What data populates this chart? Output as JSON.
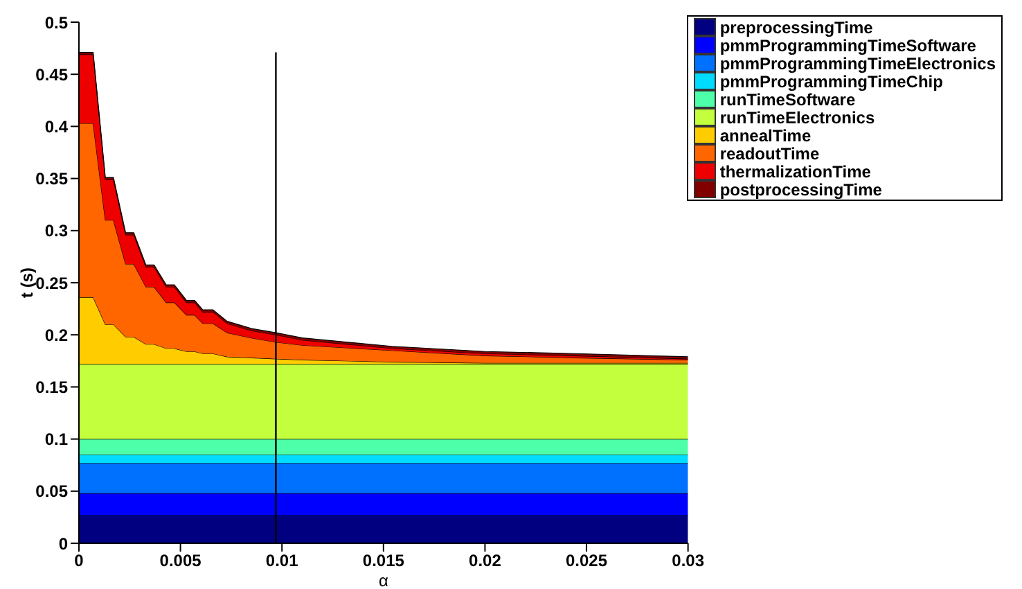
{
  "chart_data": {
    "type": "area",
    "stacked": true,
    "xlabel": "α",
    "ylabel": "t (s)",
    "x": [
      0,
      0.0007,
      0.0013,
      0.0017,
      0.0023,
      0.0027,
      0.0033,
      0.0037,
      0.0043,
      0.0047,
      0.0053,
      0.0057,
      0.0061,
      0.0066,
      0.0073,
      0.0085,
      0.0097,
      0.011,
      0.0154,
      0.02,
      0.0244,
      0.03
    ],
    "series": [
      {
        "name": "preprocessingTime",
        "color": "#000080",
        "values": [
          0.027,
          0.027,
          0.027,
          0.027,
          0.027,
          0.027,
          0.027,
          0.027,
          0.027,
          0.027,
          0.027,
          0.027,
          0.027,
          0.027,
          0.027,
          0.027,
          0.027,
          0.027,
          0.027,
          0.027,
          0.027,
          0.027
        ]
      },
      {
        "name": "pmmProgrammingTimeSoftware",
        "color": "#0000ff",
        "values": [
          0.021,
          0.021,
          0.021,
          0.021,
          0.021,
          0.021,
          0.021,
          0.021,
          0.021,
          0.021,
          0.021,
          0.021,
          0.021,
          0.021,
          0.021,
          0.021,
          0.021,
          0.021,
          0.021,
          0.021,
          0.021,
          0.021
        ]
      },
      {
        "name": "pmmProgrammingTimeElectronics",
        "color": "#0070ff",
        "values": [
          0.029,
          0.029,
          0.029,
          0.029,
          0.029,
          0.029,
          0.029,
          0.029,
          0.029,
          0.029,
          0.029,
          0.029,
          0.029,
          0.029,
          0.029,
          0.029,
          0.029,
          0.029,
          0.029,
          0.029,
          0.029,
          0.029
        ]
      },
      {
        "name": "pmmProgrammingTimeChip",
        "color": "#00dcff",
        "values": [
          0.008,
          0.008,
          0.008,
          0.008,
          0.008,
          0.008,
          0.008,
          0.008,
          0.008,
          0.008,
          0.008,
          0.008,
          0.008,
          0.008,
          0.008,
          0.008,
          0.008,
          0.008,
          0.008,
          0.008,
          0.008,
          0.008
        ]
      },
      {
        "name": "runTimeSoftware",
        "color": "#4dffa8",
        "values": [
          0.015,
          0.015,
          0.015,
          0.015,
          0.015,
          0.015,
          0.015,
          0.015,
          0.015,
          0.015,
          0.015,
          0.015,
          0.015,
          0.015,
          0.015,
          0.015,
          0.015,
          0.015,
          0.015,
          0.015,
          0.015,
          0.015
        ]
      },
      {
        "name": "runTimeElectronics",
        "color": "#c3ff3c",
        "values": [
          0.072,
          0.072,
          0.072,
          0.072,
          0.072,
          0.072,
          0.072,
          0.072,
          0.072,
          0.072,
          0.072,
          0.072,
          0.072,
          0.072,
          0.072,
          0.072,
          0.072,
          0.072,
          0.072,
          0.072,
          0.072,
          0.072
        ]
      },
      {
        "name": "annealTime",
        "color": "#ffcc00",
        "values": [
          0.064,
          0.064,
          0.038,
          0.038,
          0.026,
          0.026,
          0.019,
          0.019,
          0.015,
          0.015,
          0.012,
          0.012,
          0.01,
          0.01,
          0.007,
          0.006,
          0.005,
          0.004,
          0.002,
          0.001,
          0.001,
          0.001
        ]
      },
      {
        "name": "readoutTime",
        "color": "#ff6600",
        "values": [
          0.167,
          0.167,
          0.1,
          0.1,
          0.07,
          0.07,
          0.055,
          0.055,
          0.044,
          0.044,
          0.035,
          0.035,
          0.029,
          0.029,
          0.023,
          0.019,
          0.016,
          0.014,
          0.011,
          0.007,
          0.005,
          0.003
        ]
      },
      {
        "name": "thermalizationTime",
        "color": "#ee0000",
        "values": [
          0.066,
          0.066,
          0.039,
          0.039,
          0.028,
          0.028,
          0.019,
          0.019,
          0.015,
          0.015,
          0.012,
          0.012,
          0.011,
          0.011,
          0.009,
          0.007,
          0.007,
          0.005,
          0.002,
          0.002,
          0.002,
          0.001
        ]
      },
      {
        "name": "postprocessingTime",
        "color": "#800000",
        "values": [
          0.002,
          0.002,
          0.002,
          0.002,
          0.002,
          0.002,
          0.002,
          0.002,
          0.002,
          0.002,
          0.002,
          0.002,
          0.002,
          0.002,
          0.002,
          0.002,
          0.002,
          0.002,
          0.002,
          0.002,
          0.002,
          0.002
        ]
      }
    ],
    "xlim": [
      0,
      0.03
    ],
    "xticks": [
      0,
      0.005,
      0.01,
      0.015,
      0.02,
      0.025,
      0.03
    ],
    "ylim": [
      0,
      0.5
    ],
    "yticks": [
      0,
      0.05,
      0.1,
      0.15,
      0.2,
      0.25,
      0.3,
      0.35,
      0.4,
      0.45,
      0.5
    ],
    "ref_lines": [
      {
        "axis": "x",
        "value": 0.0097,
        "color": "#000000"
      }
    ],
    "grid": false,
    "legend": "top right"
  }
}
